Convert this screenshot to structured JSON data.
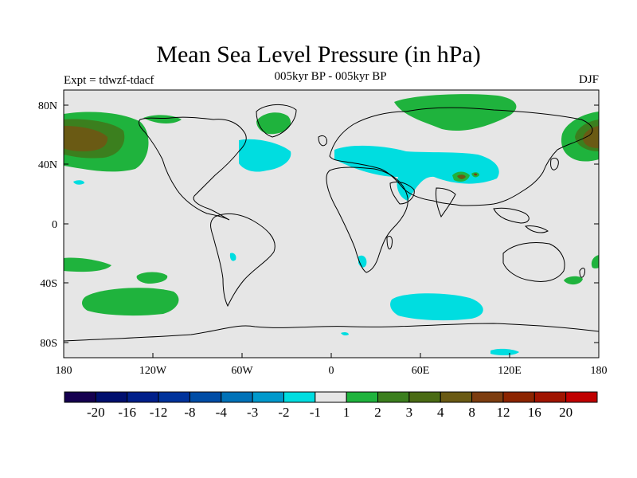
{
  "title": "Mean Sea Level Pressure (in hPa)",
  "subtitle": "005kyr BP - 005kyr BP",
  "left_label": "Expt = tdwzf-tdacf",
  "right_label": "DJF",
  "colors": {
    "background": "#e6e6e6",
    "neg_light": "#00dde0",
    "pos_1": "#1fb33d",
    "pos_2": "#3b7f1e",
    "pos_4": "#6a5a14",
    "pos_8": "#7d3d10"
  },
  "map": {
    "y_ticks": [
      "80N",
      "40N",
      "0",
      "40S",
      "80S"
    ],
    "x_ticks": [
      "180",
      "120W",
      "60W",
      "0",
      "60E",
      "120E",
      "180"
    ]
  },
  "colorbar": {
    "colors": [
      "#15004f",
      "#000f6e",
      "#001f8a",
      "#00339c",
      "#004da6",
      "#0072b8",
      "#0099cc",
      "#00dde0",
      "#e6e6e6",
      "#1fb33d",
      "#3b7f1e",
      "#4a6b14",
      "#6a5a14",
      "#7d3d10",
      "#8c2400",
      "#a01400",
      "#c00000"
    ],
    "labels": [
      "-20",
      "-16",
      "-12",
      "-8",
      "-4",
      "-3",
      "-2",
      "-1",
      "1",
      "2",
      "3",
      "4",
      "8",
      "12",
      "16",
      "20"
    ]
  }
}
